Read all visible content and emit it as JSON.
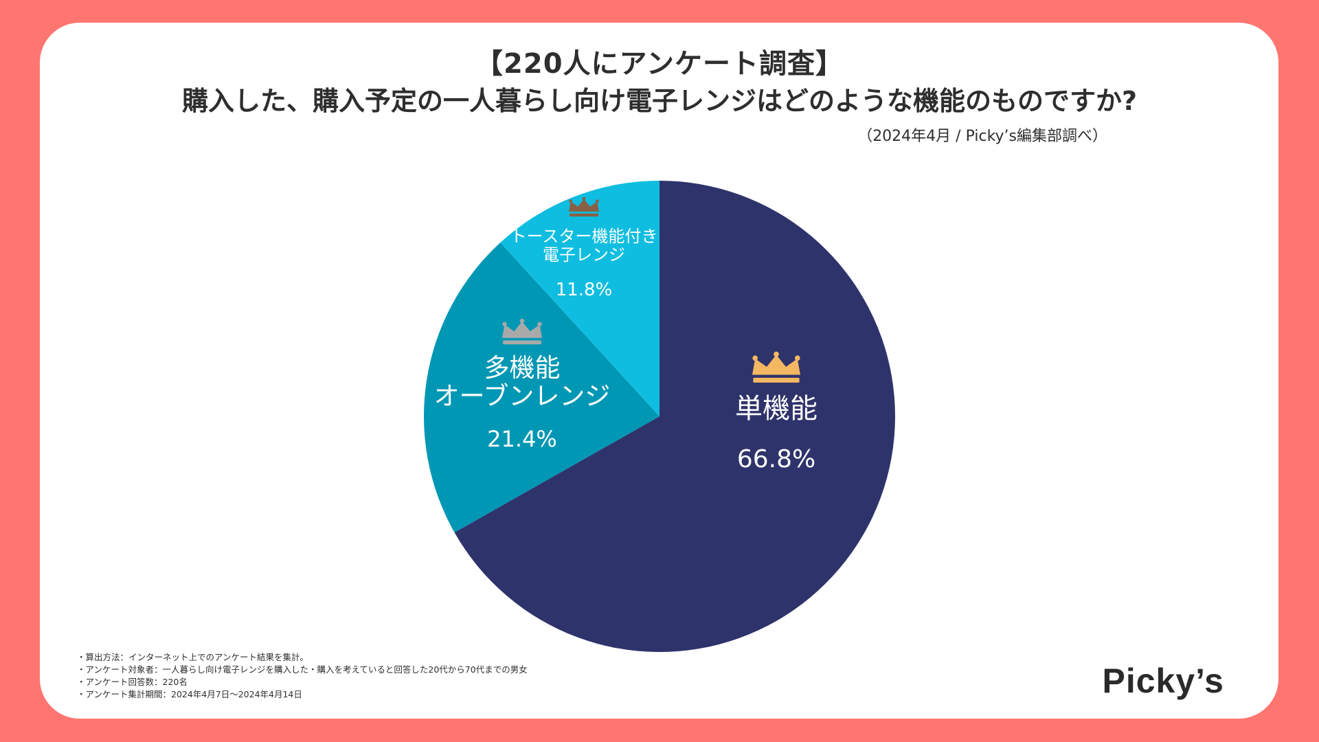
{
  "title": "【220人にアンケート調査】",
  "question": "購入した、購入予定の一人暮らし向け電子レンジはどのような機能のものですか?",
  "source": "（2024年4月 / Picky’s編集部調べ）",
  "chart_data": {
    "type": "pie",
    "slices": [
      {
        "label": "単機能",
        "value": 66.8,
        "value_text": "66.8%",
        "color": "#2f336b",
        "crown_color": "#f4b862"
      },
      {
        "label": "多機能\nオーブンレンジ",
        "value": 21.4,
        "value_text": "21.4%",
        "color": "#0097b5",
        "crown_color": "#a9a9a9"
      },
      {
        "label": "トースター機能付き\n電子レンジ",
        "value": 11.8,
        "value_text": "11.8%",
        "color": "#0fbde0",
        "crown_color": "#8a6045"
      }
    ],
    "start": "12 o'clock",
    "direction": "clockwise"
  },
  "notes": [
    "・算出方法：インターネット上でのアンケート結果を集計。",
    "・アンケート対象者：一人暮らし向け電子レンジを購入した・購入を考えていると回答した20代から70代までの男女",
    "・アンケート回答数：220名",
    "・アンケート集計期間：2024年4月7日〜2024年4月14日"
  ],
  "logo": "Picky’s",
  "colors": {
    "background": "#ff7570",
    "card": "#ffffff",
    "text": "#2e2e2e"
  }
}
